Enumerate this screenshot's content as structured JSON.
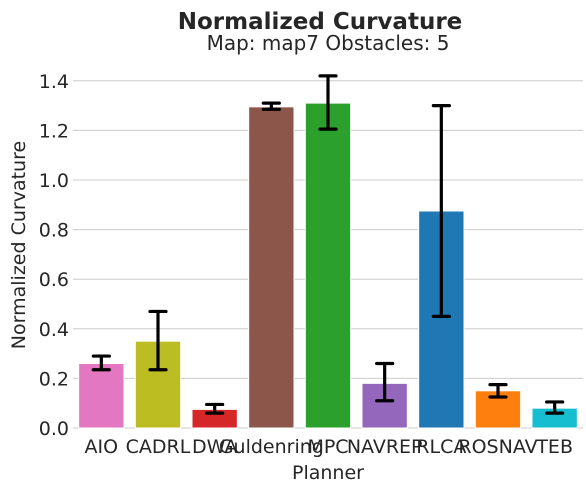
{
  "chart_data": {
    "type": "bar",
    "title": "Normalized Curvature",
    "subtitle": "Map: map7 Obstacles: 5",
    "xlabel": "Planner",
    "ylabel": "Normalized Curvature",
    "ylim": [
      0,
      1.5
    ],
    "yticks": [
      "0.0",
      "0.2",
      "0.4",
      "0.6",
      "0.8",
      "1.0",
      "1.2",
      "1.4"
    ],
    "grid": true,
    "categories": [
      "AIO",
      "CADRL",
      "DWA",
      "Guldenring",
      "MPC",
      "NAVREP",
      "RLCA",
      "ROSNAV",
      "TEB"
    ],
    "values": [
      0.26,
      0.35,
      0.075,
      1.295,
      1.31,
      0.18,
      0.875,
      0.15,
      0.08
    ],
    "error_low": [
      0.235,
      0.235,
      0.06,
      1.285,
      1.205,
      0.11,
      0.45,
      0.125,
      0.06
    ],
    "error_high": [
      0.29,
      0.47,
      0.095,
      1.31,
      1.42,
      0.26,
      1.3,
      0.175,
      0.105
    ],
    "colors": [
      "#e377c2",
      "#bcbd22",
      "#d62728",
      "#8c564b",
      "#2ca02c",
      "#9467bd",
      "#1f77b4",
      "#ff7f0e",
      "#17becf"
    ]
  }
}
